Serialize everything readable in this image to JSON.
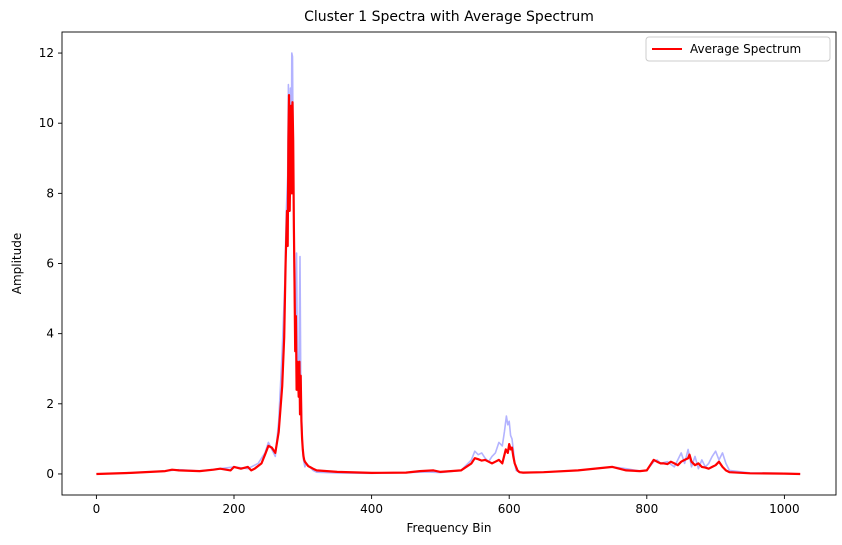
{
  "chart_data": {
    "type": "line",
    "title": "Cluster 1 Spectra with Average Spectrum",
    "xlabel": "Frequency Bin",
    "ylabel": "Amplitude",
    "xlim": [
      -50,
      1075
    ],
    "ylim": [
      -0.6,
      12.6
    ],
    "xticks": [
      0,
      200,
      400,
      600,
      800,
      1000
    ],
    "yticks": [
      0,
      2,
      4,
      6,
      8,
      10,
      12
    ],
    "grid": false,
    "legend": {
      "position": "top-right",
      "entries": [
        "Average Spectrum"
      ]
    },
    "series": [
      {
        "name": "",
        "color": "#b3b3ff",
        "x": [
          0,
          50,
          100,
          120,
          150,
          180,
          200,
          220,
          235,
          245,
          250,
          255,
          260,
          265,
          270,
          274,
          276,
          278,
          279,
          280,
          281,
          282,
          283,
          284,
          285,
          286,
          287,
          288,
          289,
          290,
          291,
          292,
          293,
          294,
          295,
          296,
          297,
          298,
          299,
          300,
          301,
          302,
          303,
          305,
          310,
          315,
          320,
          350,
          400,
          450,
          480,
          500,
          530,
          545,
          550,
          555,
          560,
          565,
          570,
          575,
          580,
          585,
          590,
          593,
          596,
          598,
          600,
          602,
          604,
          606,
          608,
          610,
          615,
          620,
          650,
          700,
          750,
          770,
          790,
          800,
          810,
          815,
          820,
          830,
          840,
          845,
          850,
          855,
          860,
          865,
          870,
          875,
          880,
          885,
          890,
          895,
          900,
          905,
          910,
          915,
          920,
          950,
          1000,
          1023
        ],
        "y": [
          0.0,
          0.03,
          0.08,
          0.12,
          0.08,
          0.15,
          0.2,
          0.15,
          0.3,
          0.6,
          0.9,
          0.7,
          0.5,
          1.5,
          3.5,
          5.5,
          7.5,
          8.5,
          11.1,
          9.0,
          10.2,
          11.0,
          8.0,
          12.0,
          11.9,
          9.0,
          6.5,
          5.0,
          4.2,
          3.5,
          6.3,
          3.5,
          2.8,
          2.2,
          4.5,
          6.2,
          3.0,
          1.8,
          1.2,
          0.6,
          0.4,
          0.3,
          0.2,
          0.3,
          0.2,
          0.1,
          0.05,
          0.03,
          0.02,
          0.04,
          0.06,
          0.04,
          0.1,
          0.4,
          0.65,
          0.55,
          0.6,
          0.45,
          0.35,
          0.5,
          0.6,
          0.9,
          0.8,
          1.2,
          1.65,
          1.4,
          1.5,
          1.1,
          1.0,
          0.7,
          0.3,
          0.1,
          0.05,
          0.03,
          0.05,
          0.1,
          0.2,
          0.15,
          0.08,
          0.1,
          0.35,
          0.4,
          0.3,
          0.35,
          0.2,
          0.4,
          0.6,
          0.3,
          0.7,
          0.2,
          0.5,
          0.15,
          0.4,
          0.2,
          0.3,
          0.5,
          0.65,
          0.4,
          0.6,
          0.3,
          0.1,
          0.03,
          0.02,
          0.0
        ]
      },
      {
        "name": "Average Spectrum",
        "color": "#ff0000",
        "x": [
          0,
          50,
          100,
          110,
          120,
          150,
          170,
          180,
          195,
          200,
          210,
          220,
          225,
          230,
          240,
          245,
          250,
          255,
          260,
          265,
          270,
          273,
          275,
          277,
          278,
          279,
          280,
          281,
          282,
          283,
          284,
          285,
          286,
          287,
          288,
          289,
          290,
          291,
          292,
          293,
          294,
          295,
          296,
          297,
          298,
          299,
          300,
          301,
          302,
          303,
          305,
          308,
          310,
          315,
          320,
          350,
          400,
          450,
          470,
          490,
          500,
          530,
          545,
          550,
          555,
          560,
          565,
          570,
          575,
          580,
          585,
          590,
          595,
          598,
          600,
          602,
          604,
          606,
          608,
          610,
          612,
          615,
          620,
          650,
          700,
          750,
          770,
          790,
          800,
          805,
          810,
          815,
          820,
          825,
          830,
          835,
          840,
          845,
          850,
          855,
          860,
          862,
          865,
          870,
          875,
          880,
          885,
          890,
          895,
          900,
          905,
          910,
          915,
          920,
          950,
          1000,
          1023
        ],
        "y": [
          0.0,
          0.03,
          0.08,
          0.12,
          0.1,
          0.08,
          0.12,
          0.15,
          0.1,
          0.2,
          0.15,
          0.2,
          0.1,
          0.15,
          0.3,
          0.55,
          0.8,
          0.75,
          0.6,
          1.2,
          2.5,
          3.9,
          6.0,
          7.5,
          6.5,
          9.5,
          10.8,
          7.5,
          9.0,
          10.5,
          8.0,
          10.6,
          9.5,
          7.0,
          5.5,
          3.5,
          4.5,
          2.4,
          3.2,
          2.8,
          2.2,
          3.2,
          1.7,
          2.8,
          1.5,
          1.0,
          0.7,
          0.5,
          0.4,
          0.35,
          0.3,
          0.22,
          0.2,
          0.15,
          0.1,
          0.06,
          0.03,
          0.04,
          0.08,
          0.1,
          0.06,
          0.1,
          0.3,
          0.45,
          0.42,
          0.38,
          0.4,
          0.35,
          0.3,
          0.35,
          0.4,
          0.3,
          0.7,
          0.6,
          0.85,
          0.7,
          0.75,
          0.5,
          0.3,
          0.2,
          0.1,
          0.05,
          0.04,
          0.05,
          0.1,
          0.2,
          0.1,
          0.08,
          0.1,
          0.25,
          0.4,
          0.35,
          0.3,
          0.3,
          0.28,
          0.35,
          0.3,
          0.25,
          0.35,
          0.4,
          0.45,
          0.55,
          0.35,
          0.25,
          0.3,
          0.2,
          0.18,
          0.15,
          0.2,
          0.25,
          0.35,
          0.2,
          0.1,
          0.05,
          0.02,
          0.01,
          0.0
        ]
      }
    ]
  }
}
